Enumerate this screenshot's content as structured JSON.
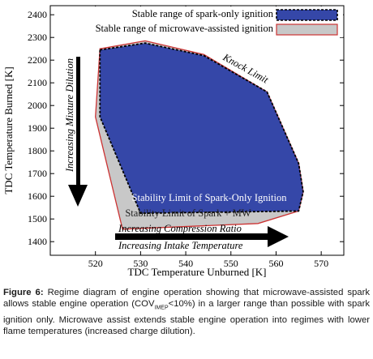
{
  "chart_data": {
    "type": "area",
    "xlabel": "TDC Temperature Unburned [K]",
    "ylabel": "TDC Temperature Burned [K]",
    "xlim": [
      510,
      575
    ],
    "ylim": [
      1340,
      2440
    ],
    "x_ticks": [
      "520",
      "530",
      "540",
      "550",
      "560",
      "570"
    ],
    "y_ticks": [
      "1400",
      "1500",
      "1600",
      "1700",
      "1800",
      "1900",
      "2000",
      "2100",
      "2200",
      "2300",
      "2400"
    ],
    "grid": false,
    "legend_position": "top-right",
    "colors": {
      "spark_only": "#3547a8",
      "microwave": "#c8c8c8",
      "microwave_edge": "#cc3333"
    },
    "series": [
      {
        "name": "Stable range of spark-only ignition",
        "points": [
          [
            521,
            2245
          ],
          [
            531,
            2275
          ],
          [
            544,
            2220
          ],
          [
            558,
            2060
          ],
          [
            565,
            1745
          ],
          [
            566,
            1620
          ],
          [
            565,
            1535
          ],
          [
            530,
            1525
          ],
          [
            521,
            1950
          ]
        ]
      },
      {
        "name": "Stable range of microwave-assisted ignition",
        "points": [
          [
            521,
            2250
          ],
          [
            531,
            2285
          ],
          [
            544,
            2225
          ],
          [
            558,
            2060
          ],
          [
            565,
            1745
          ],
          [
            566,
            1620
          ],
          [
            565,
            1535
          ],
          [
            556,
            1480
          ],
          [
            526,
            1455
          ],
          [
            520,
            1950
          ]
        ]
      }
    ],
    "annotations": [
      "Knock Limit",
      "Increasing Mixture Dilution",
      "Stability Limit of Spark-Only Ignition",
      "Stability Limit of Spark + MW",
      "Increasing Compression Ratio",
      "Increasing Intake Temperature"
    ]
  },
  "caption": {
    "label": "Figure 6:",
    "text_1": " Regime diagram of engine operation showing that microwave-assisted spark allows stable engine operation (COV",
    "sub": "IMEP",
    "text_2": "<10%) in a larger range than possible with spark ignition only. Microwave assist extends stable engine operation into regimes with lower flame temperatures (increased charge dilution)."
  }
}
